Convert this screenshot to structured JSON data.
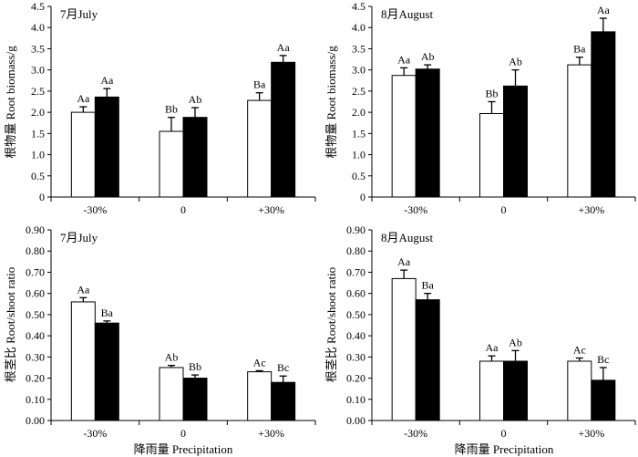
{
  "figure": {
    "x_axis_title": "降雨量 Precipitation"
  },
  "chart_data": [
    {
      "type": "bar",
      "title": "7月July",
      "ylabel": "根物量 Root biomass/g",
      "xlabel": "",
      "ylim": [
        0,
        4.5
      ],
      "yticks": [
        "0",
        "0.5",
        "1.0",
        "1.5",
        "2.0",
        "2.5",
        "3.0",
        "3.5",
        "4.0",
        "4.5"
      ],
      "categories": [
        "-30%",
        "0",
        "+30%"
      ],
      "series": [
        {
          "name": "open",
          "color": "#ffffff",
          "values": [
            2.0,
            1.55,
            2.28
          ],
          "errors": [
            0.13,
            0.33,
            0.18
          ],
          "labels": [
            "Aa",
            "Bb",
            "Ba"
          ]
        },
        {
          "name": "filled",
          "color": "#000000",
          "values": [
            2.36,
            1.88,
            3.18
          ],
          "errors": [
            0.2,
            0.23,
            0.16
          ],
          "labels": [
            "Aa",
            "Ab",
            "Aa"
          ]
        }
      ]
    },
    {
      "type": "bar",
      "title": "8月August",
      "ylabel": "根物量 Root biomass/g",
      "xlabel": "",
      "ylim": [
        0,
        4.5
      ],
      "yticks": [
        "0",
        "0.5",
        "1.0",
        "1.5",
        "2.0",
        "2.5",
        "3.0",
        "3.5",
        "4.0",
        "4.5"
      ],
      "categories": [
        "-30%",
        "0",
        "+30%"
      ],
      "series": [
        {
          "name": "open",
          "color": "#ffffff",
          "values": [
            2.87,
            1.97,
            3.12
          ],
          "errors": [
            0.18,
            0.28,
            0.18
          ],
          "labels": [
            "Aa",
            "Bb",
            "Ba"
          ]
        },
        {
          "name": "filled",
          "color": "#000000",
          "values": [
            3.02,
            2.62,
            3.9
          ],
          "errors": [
            0.1,
            0.38,
            0.32
          ],
          "labels": [
            "Ab",
            "Ab",
            "Aa"
          ]
        }
      ]
    },
    {
      "type": "bar",
      "title": "7月July",
      "ylabel": "根茎比 Root/shoot ratio",
      "xlabel": "降雨量 Precipitation",
      "ylim": [
        0,
        0.9
      ],
      "yticks": [
        "0.00",
        "0.10",
        "0.20",
        "0.30",
        "0.40",
        "0.50",
        "0.60",
        "0.70",
        "0.80",
        "0.90"
      ],
      "categories": [
        "-30%",
        "0",
        "+30%"
      ],
      "series": [
        {
          "name": "open",
          "color": "#ffffff",
          "values": [
            0.56,
            0.25,
            0.23
          ],
          "errors": [
            0.02,
            0.01,
            0.005
          ],
          "labels": [
            "Aa",
            "Ab",
            "Ac"
          ]
        },
        {
          "name": "filled",
          "color": "#000000",
          "values": [
            0.46,
            0.2,
            0.18
          ],
          "errors": [
            0.01,
            0.015,
            0.03
          ],
          "labels": [
            "Ba",
            "Bb",
            "Bc"
          ]
        }
      ]
    },
    {
      "type": "bar",
      "title": "8月August",
      "ylabel": "根茎比 Root/shoot ratio",
      "xlabel": "降雨量 Precipitation",
      "ylim": [
        0,
        0.9
      ],
      "yticks": [
        "0.00",
        "0.10",
        "0.20",
        "0.30",
        "0.40",
        "0.50",
        "0.60",
        "0.70",
        "0.80",
        "0.90"
      ],
      "categories": [
        "-30%",
        "0",
        "+30%"
      ],
      "series": [
        {
          "name": "open",
          "color": "#ffffff",
          "values": [
            0.67,
            0.28,
            0.28
          ],
          "errors": [
            0.04,
            0.025,
            0.015
          ],
          "labels": [
            "Aa",
            "Aa",
            "Ac"
          ]
        },
        {
          "name": "filled",
          "color": "#000000",
          "values": [
            0.57,
            0.28,
            0.19
          ],
          "errors": [
            0.03,
            0.05,
            0.06
          ],
          "labels": [
            "Ba",
            "Ab",
            "Bc"
          ]
        }
      ]
    }
  ]
}
